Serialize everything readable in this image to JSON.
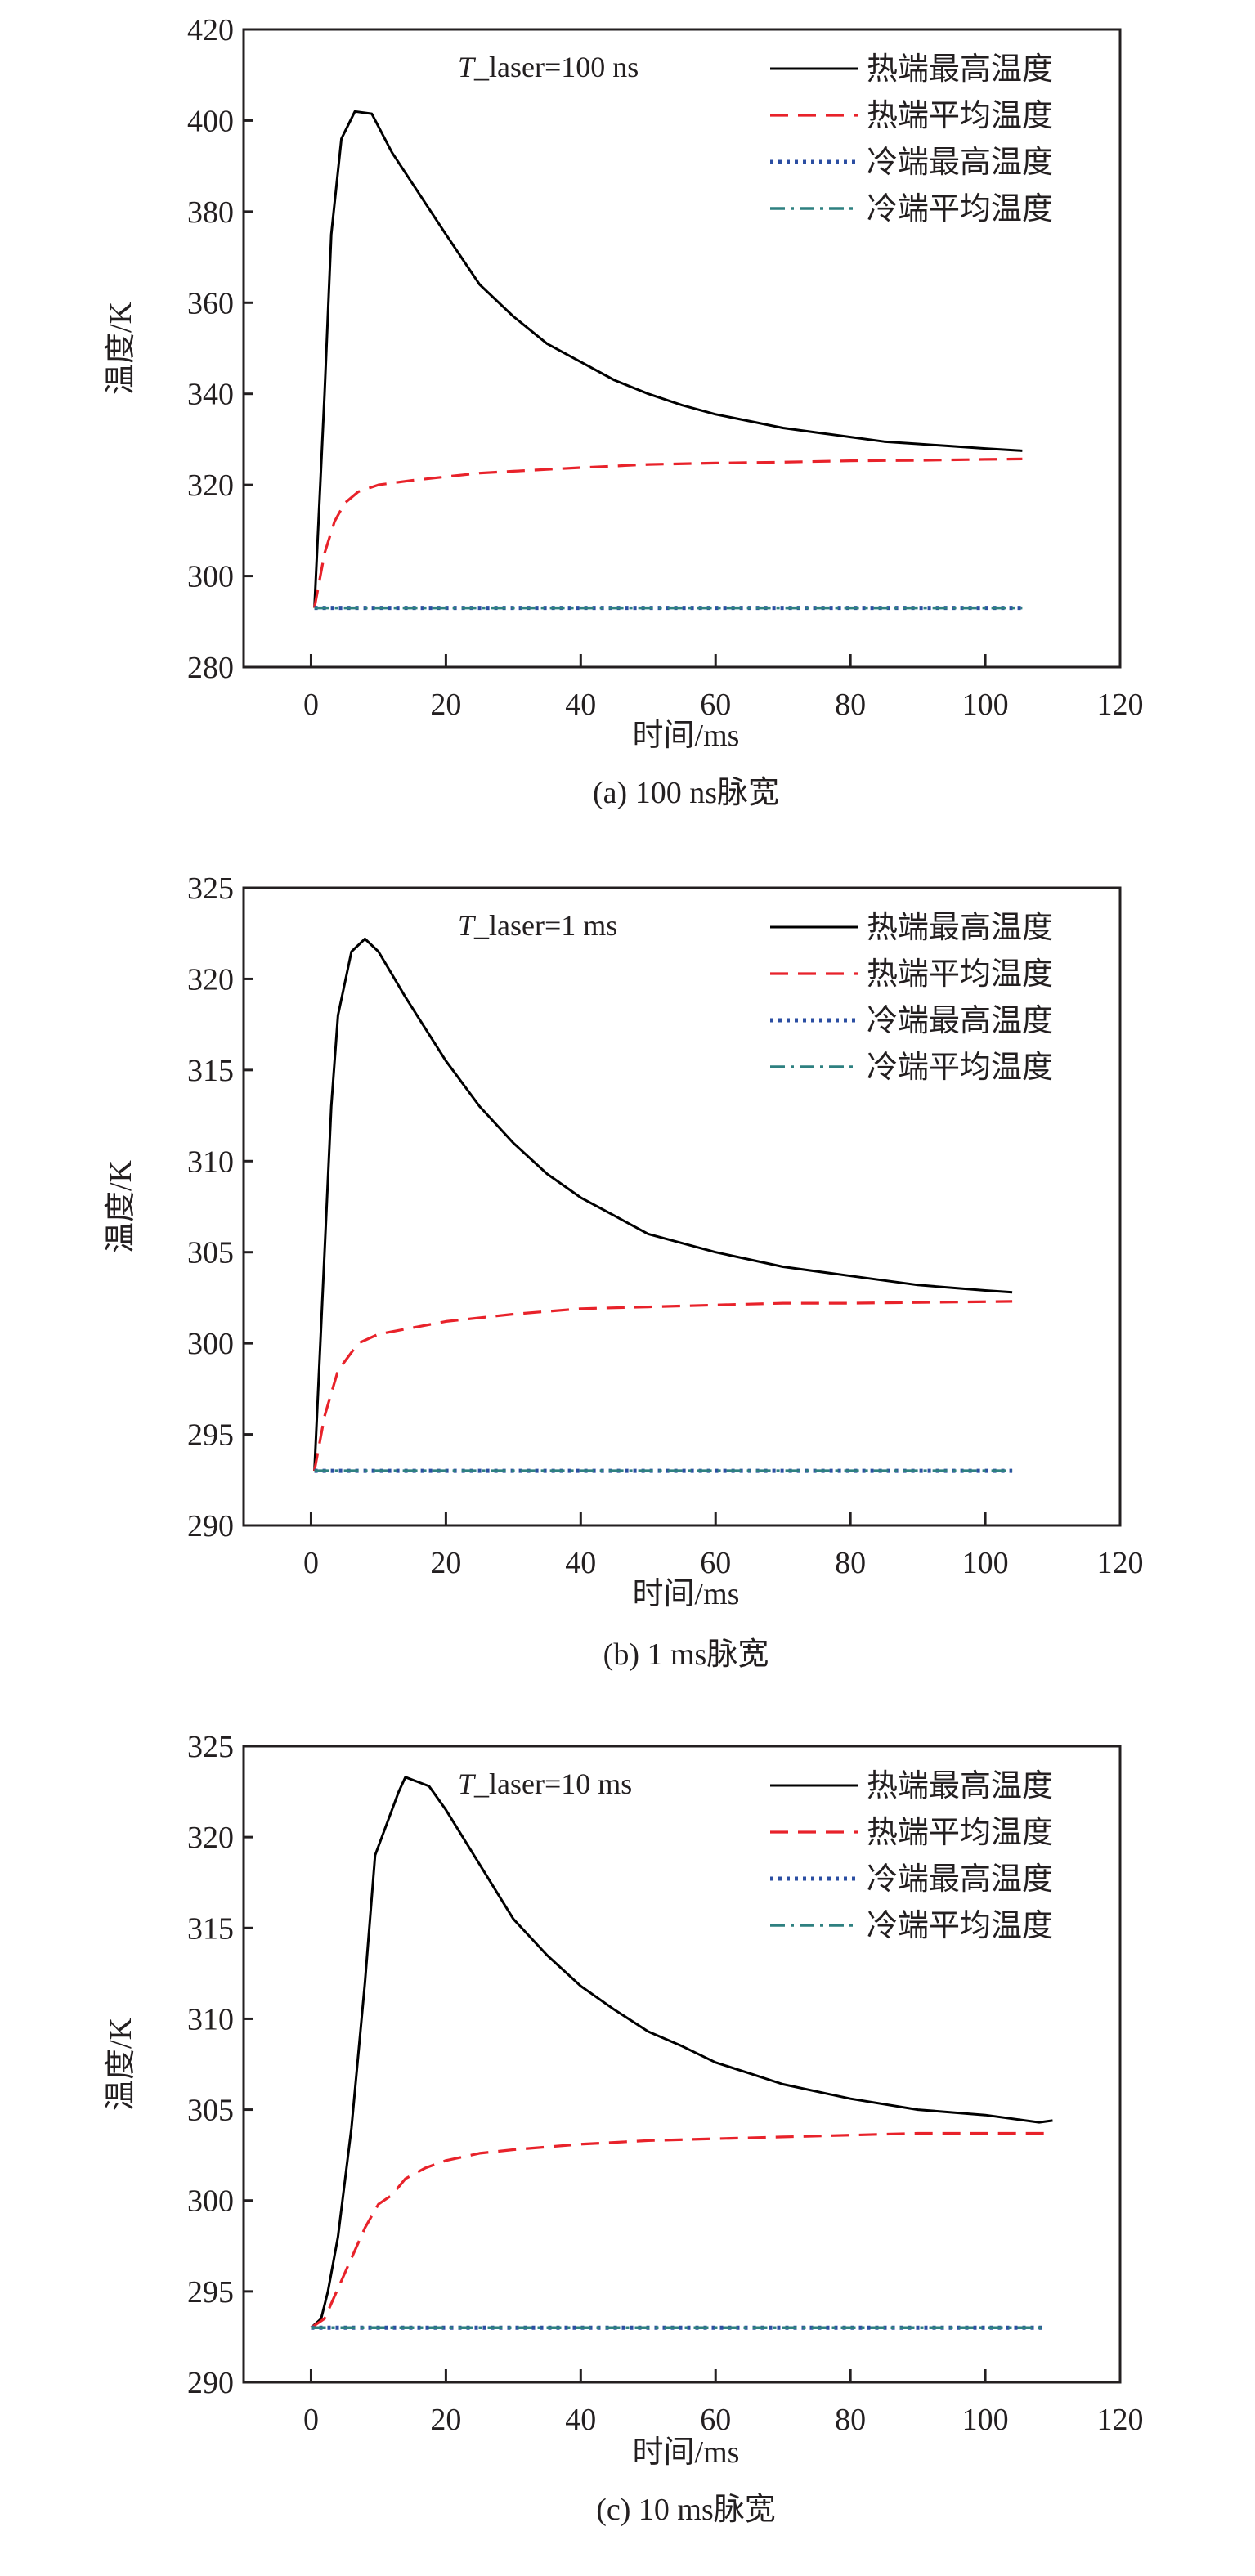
{
  "chart_data": [
    {
      "type": "line",
      "caption": "(a) 100 ns脉宽",
      "annotation_italic": "T",
      "annotation_rest": "_laser=100 ns",
      "xlabel": "时间/ms",
      "ylabel": "温度/K",
      "xlim": [
        -10,
        120
      ],
      "ylim": [
        280,
        420
      ],
      "xticks": [
        0,
        20,
        40,
        60,
        80,
        100,
        120
      ],
      "yticks": [
        280,
        300,
        320,
        340,
        360,
        380,
        400,
        420
      ],
      "legend_position": "top-right",
      "series": [
        {
          "name": "热端最高温度",
          "color": "#000000",
          "style": "solid",
          "x": [
            0.5,
            2,
            3,
            4.5,
            6.5,
            9,
            12,
            16,
            20,
            25,
            30,
            35,
            40,
            45,
            50,
            55,
            60,
            65,
            70,
            75,
            80,
            85,
            90,
            95,
            100,
            105.5
          ],
          "y": [
            293,
            340,
            375,
            396,
            402,
            401.5,
            393,
            384,
            375,
            364,
            357,
            351,
            347,
            343,
            340,
            337.5,
            335.5,
            334,
            332.5,
            331.5,
            330.5,
            329.5,
            329,
            328.5,
            328,
            327.5
          ]
        },
        {
          "name": "热端平均温度",
          "color": "#e8222a",
          "style": "dashed",
          "x": [
            0.5,
            2,
            3.5,
            5,
            7,
            10,
            15,
            20,
            25,
            30,
            40,
            50,
            60,
            70,
            80,
            90,
            100,
            105.5
          ],
          "y": [
            293,
            305,
            312,
            316,
            318.5,
            320,
            321,
            321.8,
            322.6,
            323,
            323.8,
            324.5,
            324.8,
            325,
            325.3,
            325.4,
            325.6,
            325.7
          ]
        },
        {
          "name": "冷端最高温度",
          "color": "#2b4ea2",
          "style": "dotted",
          "x": [
            0.5,
            105.5
          ],
          "y": [
            293,
            293
          ]
        },
        {
          "name": "冷端平均温度",
          "color": "#2e8080",
          "style": "dashdot",
          "x": [
            0.5,
            105.5
          ],
          "y": [
            293,
            293
          ]
        }
      ]
    },
    {
      "type": "line",
      "caption": "(b) 1 ms脉宽",
      "annotation_italic": "T",
      "annotation_rest": "_laser=1 ms",
      "xlabel": "时间/ms",
      "ylabel": "温度/K",
      "xlim": [
        -10,
        120
      ],
      "ylim": [
        290,
        325
      ],
      "xticks": [
        0,
        20,
        40,
        60,
        80,
        100,
        120
      ],
      "yticks": [
        290,
        295,
        300,
        305,
        310,
        315,
        320,
        325
      ],
      "legend_position": "top-right",
      "series": [
        {
          "name": "热端最高温度",
          "color": "#000000",
          "style": "solid",
          "x": [
            0.5,
            2,
            3,
            4,
            6,
            8,
            10,
            14,
            20,
            25,
            30,
            35,
            40,
            45,
            50,
            60,
            70,
            80,
            90,
            100,
            104
          ],
          "y": [
            293,
            305,
            313,
            318,
            321.5,
            322.2,
            321.5,
            319,
            315.5,
            313,
            311,
            309.3,
            308,
            307,
            306,
            305,
            304.2,
            303.7,
            303.2,
            302.9,
            302.8
          ]
        },
        {
          "name": "热端平均温度",
          "color": "#e8222a",
          "style": "dashed",
          "x": [
            0.5,
            2,
            4,
            7,
            10,
            20,
            30,
            40,
            50,
            60,
            70,
            80,
            104
          ],
          "y": [
            293,
            296,
            298.5,
            300,
            300.5,
            301.2,
            301.6,
            301.9,
            302,
            302.1,
            302.2,
            302.2,
            302.3
          ]
        },
        {
          "name": "冷端最高温度",
          "color": "#2b4ea2",
          "style": "dotted",
          "x": [
            0.5,
            104
          ],
          "y": [
            293,
            293
          ]
        },
        {
          "name": "冷端平均温度",
          "color": "#2e8080",
          "style": "dashdot",
          "x": [
            0.5,
            104
          ],
          "y": [
            293,
            293
          ]
        }
      ]
    },
    {
      "type": "line",
      "caption": "(c) 10 ms脉宽",
      "annotation_italic": "T",
      "annotation_rest": "_laser=10 ms",
      "xlabel": "时间/ms",
      "ylabel": "温度/K",
      "xlim": [
        -10,
        120
      ],
      "ylim": [
        290,
        325
      ],
      "xticks": [
        0,
        20,
        40,
        60,
        80,
        100,
        120
      ],
      "yticks": [
        290,
        295,
        300,
        305,
        310,
        315,
        320,
        325
      ],
      "legend_position": "top-right",
      "series": [
        {
          "name": "热端最高温度",
          "color": "#000000",
          "style": "solid",
          "x": [
            0,
            1.5,
            2.5,
            4,
            6,
            8,
            9.5,
            11,
            13,
            14,
            17.5,
            20,
            25,
            30,
            35,
            40,
            45,
            50,
            55,
            60,
            65,
            70,
            80,
            90,
            100,
            108,
            110
          ],
          "y": [
            293,
            293.5,
            295,
            298,
            304,
            312,
            319,
            320.5,
            322.5,
            323.3,
            322.8,
            321.5,
            318.5,
            315.5,
            313.5,
            311.8,
            310.5,
            309.3,
            308.5,
            307.6,
            307,
            306.4,
            305.6,
            305,
            304.7,
            304.3,
            304.4
          ]
        },
        {
          "name": "热端平均温度",
          "color": "#e8222a",
          "style": "dashed",
          "x": [
            0,
            2,
            5,
            8,
            10,
            12,
            14,
            17,
            20,
            25,
            30,
            40,
            50,
            60,
            70,
            80,
            90,
            110
          ],
          "y": [
            293,
            293.5,
            296,
            298.5,
            299.8,
            300.3,
            301.2,
            301.8,
            302.2,
            302.6,
            302.8,
            303.1,
            303.3,
            303.4,
            303.5,
            303.6,
            303.7,
            303.7
          ]
        },
        {
          "name": "冷端最高温度",
          "color": "#2b4ea2",
          "style": "dotted",
          "x": [
            0,
            108.5
          ],
          "y": [
            293,
            293
          ]
        },
        {
          "name": "冷端平均温度",
          "color": "#2e8080",
          "style": "dashdot",
          "x": [
            0,
            108.5
          ],
          "y": [
            293,
            293
          ]
        }
      ]
    }
  ]
}
